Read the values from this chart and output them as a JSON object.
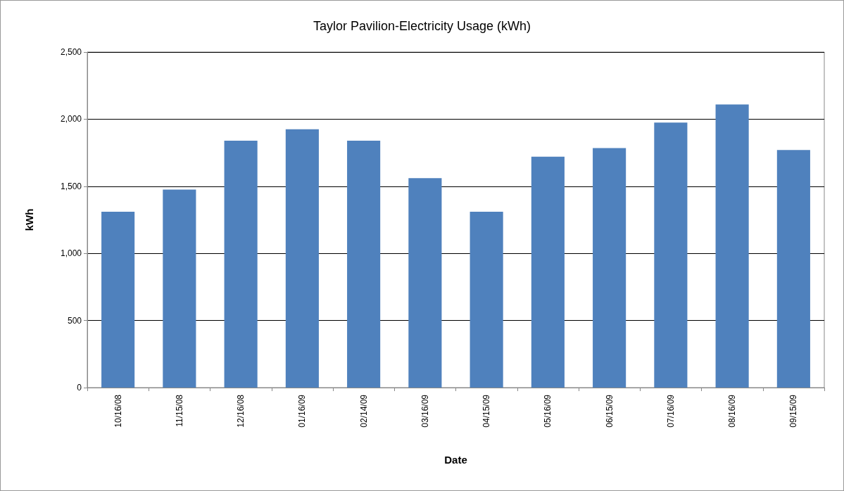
{
  "chart_data": {
    "type": "bar",
    "title": "Taylor Pavilion-Electricity Usage (kWh)",
    "xlabel": "Date",
    "ylabel": "kWh",
    "categories": [
      "10/16/08",
      "11/15/08",
      "12/16/08",
      "01/16/09",
      "02/14/09",
      "03/16/09",
      "04/15/09",
      "05/16/09",
      "06/15/09",
      "07/16/09",
      "08/16/09",
      "09/15/09"
    ],
    "values": [
      1310,
      1475,
      1840,
      1925,
      1840,
      1560,
      1310,
      1720,
      1785,
      1975,
      2110,
      1770
    ],
    "color": "#4f81bd",
    "ylim": [
      0,
      2500
    ],
    "yticks": [
      0,
      500,
      {
        "value": 1000,
        "label": "1,000"
      },
      {
        "value": 1500,
        "label": "1,500"
      },
      {
        "value": 2000,
        "label": "2,000"
      },
      {
        "value": 2500,
        "label": "2,500"
      }
    ],
    "grid": "y"
  }
}
